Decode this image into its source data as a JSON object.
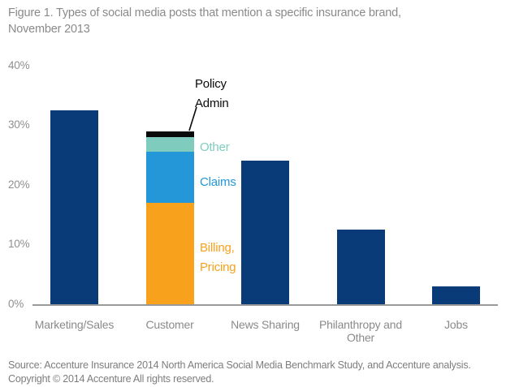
{
  "title": {
    "line1": "Figure 1. Types of social media posts that mention a specific insurance brand,",
    "line2": "November 2013"
  },
  "colors": {
    "navy": "#0a3b79",
    "orange": "#f7a11d",
    "blue": "#2397d8",
    "teal": "#7fccbf",
    "black": "#0a0a0a",
    "axis_gray": "#9a9a9a",
    "label_gray": "#8a8a8a"
  },
  "chart_data": {
    "type": "bar",
    "stacked": true,
    "title": "Figure 1. Types of social media posts that mention a specific insurance brand, November 2013",
    "xlabel": "",
    "ylabel": "",
    "ylim": [
      0,
      40
    ],
    "grid": false,
    "y_ticks": [
      {
        "label": "40%",
        "value": 40
      },
      {
        "label": "30%",
        "value": 30
      },
      {
        "label": "20%",
        "value": 20
      },
      {
        "label": "10%",
        "value": 10
      },
      {
        "label": "0%",
        "value": 0
      }
    ],
    "categories": [
      "Marketing/Sales",
      "Customer",
      "News Sharing",
      "Philanthropy and Other",
      "Jobs"
    ],
    "bars": [
      {
        "category": "Marketing/Sales",
        "total": 32.5,
        "segments": [
          {
            "label": "Marketing/Sales",
            "value": 32.5,
            "color_key": "navy"
          }
        ]
      },
      {
        "category": "Customer",
        "total": 29,
        "segments": [
          {
            "label": "Billing, Pricing",
            "value": 17,
            "color_key": "orange"
          },
          {
            "label": "Claims",
            "value": 8.5,
            "color_key": "blue"
          },
          {
            "label": "Other",
            "value": 2.5,
            "color_key": "teal"
          },
          {
            "label": "Policy Admin",
            "value": 1,
            "color_key": "black"
          }
        ]
      },
      {
        "category": "News Sharing",
        "total": 24,
        "segments": [
          {
            "label": "News Sharing",
            "value": 24,
            "color_key": "navy"
          }
        ]
      },
      {
        "category": "Philanthropy and Other",
        "total": 12.5,
        "segments": [
          {
            "label": "Philanthropy and Other",
            "value": 12.5,
            "color_key": "navy"
          }
        ]
      },
      {
        "category": "Jobs",
        "total": 3,
        "segments": [
          {
            "label": "Jobs",
            "value": 3,
            "color_key": "navy"
          }
        ]
      }
    ],
    "annotations": {
      "policy_admin": {
        "line1": "Policy",
        "line2": "Admin",
        "color_key": "black"
      },
      "other": {
        "label": "Other",
        "color_key": "teal"
      },
      "claims": {
        "label": "Claims",
        "color_key": "blue"
      },
      "billing": {
        "line1": "Billing,",
        "line2": "Pricing",
        "color_key": "orange"
      }
    },
    "legend_position": "inline-annotations"
  },
  "footer": {
    "source_line": "Source: Accenture Insurance 2014 North America Social Media Benchmark Study, and Accenture analysis.",
    "copyright_line": "Copyright © 2014 Accenture All rights reserved."
  }
}
